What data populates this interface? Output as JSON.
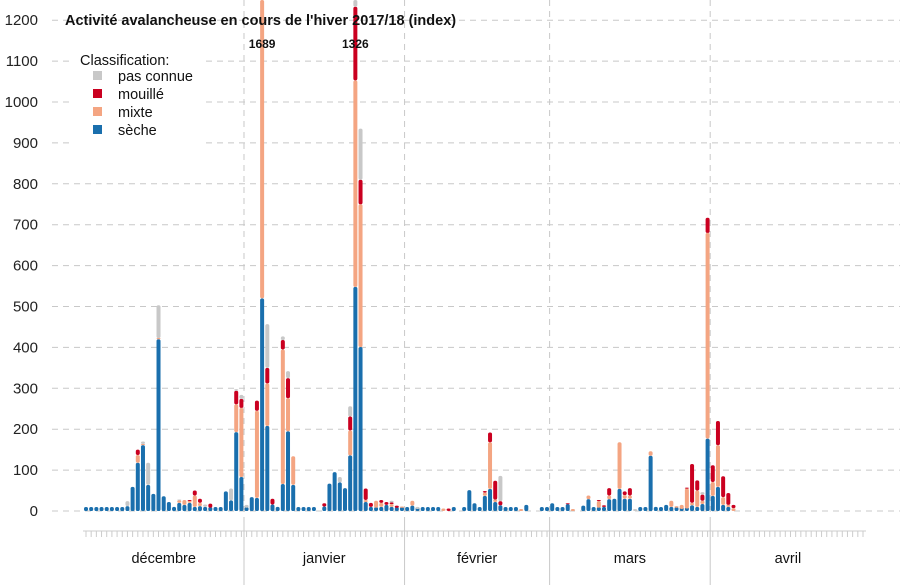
{
  "chart_data": {
    "type": "bar",
    "stacked": true,
    "title": "Activité avalancheuse en cours de l'hiver 2017/18 (index)",
    "xlabel": "",
    "ylabel": "",
    "ylim": [
      0,
      1250
    ],
    "yticks": [
      0,
      100,
      200,
      300,
      400,
      500,
      600,
      700,
      800,
      900,
      1000,
      1100,
      1200
    ],
    "grid": true,
    "legend": {
      "title": "Classification:",
      "placement": "top-left",
      "entries": [
        "pas connue",
        "mouillé",
        "mixte",
        "sèche"
      ]
    },
    "series": [
      {
        "name": "sèche",
        "color": "#1a6fad"
      },
      {
        "name": "mixte",
        "color": "#f4a582"
      },
      {
        "name": "mouillé",
        "color": "#ca0020"
      },
      {
        "name": "pas connue",
        "color": "#c8c8c8"
      }
    ],
    "series_order_in_rows": [
      "sèche",
      "mixte",
      "mouillé",
      "pas connue"
    ],
    "months": [
      {
        "label": "décembre",
        "days": [
          [
            5,
            0,
            0,
            0
          ],
          [
            5,
            0,
            0,
            0
          ],
          [
            5,
            0,
            0,
            0
          ],
          [
            5,
            0,
            0,
            0
          ],
          [
            5,
            0,
            0,
            0
          ],
          [
            5,
            0,
            0,
            0
          ],
          [
            5,
            0,
            0,
            0
          ],
          [
            5,
            0,
            0,
            0
          ],
          [
            12,
            0,
            0,
            12
          ],
          [
            59,
            0,
            0,
            0
          ],
          [
            118,
            19,
            13,
            0
          ],
          [
            161,
            3,
            0,
            6
          ],
          [
            64,
            0,
            0,
            54
          ],
          [
            42,
            0,
            0,
            0
          ],
          [
            420,
            3,
            0,
            80
          ],
          [
            36,
            0,
            0,
            0
          ],
          [
            22,
            0,
            0,
            0
          ],
          [
            10,
            0,
            0,
            0
          ],
          [
            20,
            6,
            0,
            2
          ],
          [
            15,
            12,
            0,
            0
          ],
          [
            20,
            5,
            2,
            0
          ],
          [
            10,
            28,
            12,
            0
          ],
          [
            12,
            8,
            10,
            0
          ],
          [
            10,
            0,
            0,
            6
          ],
          [
            8,
            0,
            10,
            0
          ],
          [
            5,
            0,
            0,
            0
          ],
          [
            5,
            0,
            0,
            0
          ],
          [
            48,
            0,
            0,
            0
          ],
          [
            26,
            0,
            0,
            29
          ],
          [
            193,
            68,
            33,
            4
          ],
          [
            83,
            169,
            22,
            10
          ]
        ]
      },
      {
        "label": "janvier",
        "days": [
          [
            8,
            0,
            0,
            7
          ],
          [
            34,
            0,
            0,
            0
          ],
          [
            32,
            213,
            25,
            0
          ],
          [
            520,
            1169,
            0,
            0
          ],
          [
            208,
            104,
            38,
            107
          ],
          [
            16,
            0,
            14,
            0
          ],
          [
            10,
            0,
            0,
            0
          ],
          [
            66,
            329,
            23,
            9
          ],
          [
            195,
            81,
            49,
            17
          ],
          [
            64,
            70,
            0,
            0
          ],
          [
            5,
            0,
            0,
            0
          ],
          [
            5,
            0,
            0,
            0
          ],
          [
            5,
            0,
            0,
            0
          ],
          [
            5,
            0,
            0,
            0
          ],
          [
            0,
            0,
            0,
            0
          ],
          [
            11,
            0,
            8,
            0
          ],
          [
            67,
            0,
            0,
            0
          ],
          [
            95,
            0,
            0,
            0
          ],
          [
            70,
            0,
            0,
            13
          ],
          [
            56,
            0,
            0,
            0
          ],
          [
            136,
            61,
            34,
            25
          ],
          [
            548,
            505,
            180,
            93
          ],
          [
            401,
            349,
            60,
            125
          ],
          [
            22,
            5,
            28,
            0
          ],
          [
            10,
            0,
            10,
            0
          ],
          [
            8,
            17,
            0,
            0
          ],
          [
            10,
            10,
            7,
            0
          ],
          [
            15,
            0,
            7,
            0
          ],
          [
            10,
            7,
            4,
            4
          ],
          [
            8,
            0,
            5,
            0
          ],
          [
            8,
            3,
            0,
            0
          ]
        ]
      },
      {
        "label": "février",
        "days": [
          [
            5,
            0,
            0,
            0
          ],
          [
            13,
            12,
            0,
            0
          ],
          [
            5,
            0,
            0,
            5
          ],
          [
            5,
            0,
            0,
            0
          ],
          [
            5,
            0,
            0,
            0
          ],
          [
            5,
            0,
            0,
            0
          ],
          [
            5,
            0,
            0,
            0
          ],
          [
            0,
            6,
            0,
            0
          ],
          [
            0,
            0,
            6,
            0
          ],
          [
            5,
            0,
            0,
            0
          ],
          [
            0,
            0,
            0,
            0
          ],
          [
            5,
            0,
            0,
            0
          ],
          [
            51,
            0,
            0,
            0
          ],
          [
            19,
            0,
            0,
            0
          ],
          [
            5,
            0,
            0,
            0
          ],
          [
            37,
            8,
            4,
            0
          ],
          [
            54,
            114,
            24,
            0
          ],
          [
            22,
            6,
            46,
            0
          ],
          [
            14,
            0,
            10,
            62
          ],
          [
            5,
            0,
            0,
            0
          ],
          [
            5,
            0,
            0,
            0
          ],
          [
            5,
            0,
            0,
            0
          ],
          [
            0,
            5,
            0,
            0
          ],
          [
            15,
            0,
            0,
            0
          ],
          [
            0,
            0,
            0,
            0
          ],
          [
            0,
            0,
            0,
            0
          ],
          [
            5,
            0,
            0,
            0
          ],
          [
            5,
            0,
            0,
            0
          ]
        ]
      },
      {
        "label": "mars",
        "days": [
          [
            19,
            0,
            0,
            0
          ],
          [
            5,
            0,
            0,
            0
          ],
          [
            5,
            0,
            0,
            0
          ],
          [
            17,
            0,
            2,
            0
          ],
          [
            0,
            5,
            0,
            0
          ],
          [
            0,
            0,
            0,
            0
          ],
          [
            13,
            0,
            0,
            0
          ],
          [
            29,
            9,
            0,
            0
          ],
          [
            5,
            0,
            0,
            0
          ],
          [
            8,
            16,
            3,
            0
          ],
          [
            10,
            0,
            4,
            0
          ],
          [
            29,
            9,
            18,
            0
          ],
          [
            30,
            0,
            0,
            0
          ],
          [
            54,
            114,
            0,
            0
          ],
          [
            30,
            9,
            9,
            0
          ],
          [
            30,
            8,
            18,
            0
          ],
          [
            0,
            0,
            0,
            5
          ],
          [
            5,
            0,
            0,
            0
          ],
          [
            5,
            0,
            0,
            0
          ],
          [
            135,
            11,
            0,
            0
          ],
          [
            10,
            0,
            0,
            0
          ],
          [
            5,
            0,
            0,
            0
          ],
          [
            15,
            0,
            0,
            0
          ],
          [
            10,
            15,
            0,
            0
          ],
          [
            8,
            4,
            0,
            0
          ],
          [
            5,
            10,
            0,
            0
          ],
          [
            6,
            49,
            2,
            0
          ],
          [
            14,
            6,
            95,
            0
          ],
          [
            10,
            40,
            25,
            0
          ],
          [
            17,
            8,
            15,
            6
          ],
          [
            177,
            503,
            37,
            0
          ]
        ]
      },
      {
        "label": "avril",
        "days": [
          [
            37,
            34,
            41,
            0
          ],
          [
            59,
            102,
            59,
            0
          ],
          [
            15,
            19,
            51,
            0
          ],
          [
            10,
            5,
            29,
            0
          ],
          [
            0,
            7,
            8,
            0
          ],
          [
            0,
            0,
            0,
            0
          ],
          [
            0,
            0,
            0,
            0
          ],
          [
            0,
            0,
            0,
            0
          ],
          [
            0,
            0,
            0,
            0
          ],
          [
            0,
            0,
            0,
            0
          ],
          [
            0,
            0,
            0,
            0
          ],
          [
            0,
            0,
            0,
            0
          ],
          [
            0,
            0,
            0,
            0
          ],
          [
            0,
            0,
            0,
            0
          ],
          [
            0,
            0,
            0,
            0
          ],
          [
            0,
            0,
            0,
            0
          ],
          [
            0,
            0,
            0,
            0
          ],
          [
            0,
            0,
            0,
            0
          ],
          [
            0,
            0,
            0,
            0
          ],
          [
            0,
            0,
            0,
            0
          ],
          [
            0,
            0,
            0,
            0
          ],
          [
            0,
            0,
            0,
            0
          ],
          [
            0,
            0,
            0,
            0
          ],
          [
            0,
            0,
            0,
            0
          ],
          [
            0,
            0,
            0,
            0
          ],
          [
            0,
            0,
            0,
            0
          ],
          [
            0,
            0,
            0,
            0
          ],
          [
            0,
            0,
            0,
            0
          ],
          [
            0,
            0,
            0,
            0
          ],
          [
            0,
            0,
            0,
            0
          ]
        ]
      }
    ],
    "annotations": [
      {
        "month": "janvier",
        "day": 4,
        "text": "1689"
      },
      {
        "month": "janvier",
        "day": 22,
        "text": "1326"
      }
    ]
  }
}
